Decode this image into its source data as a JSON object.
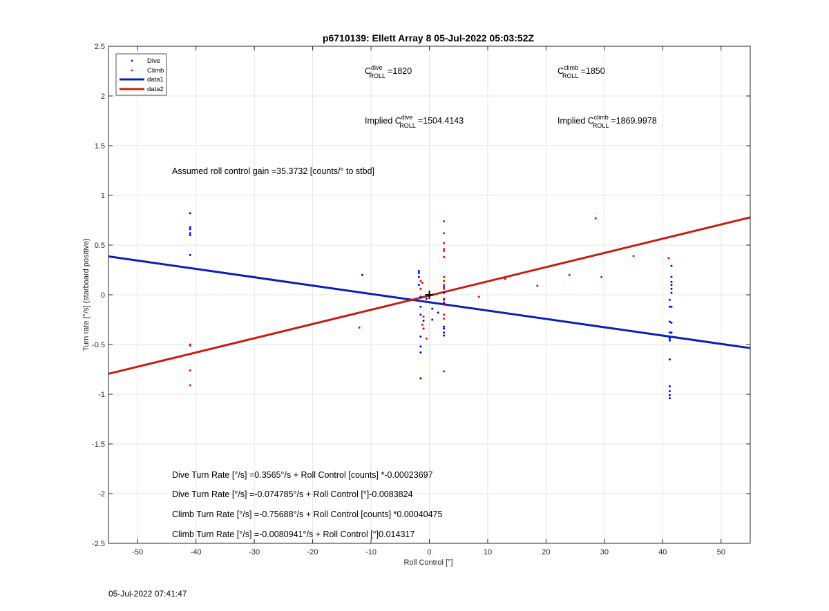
{
  "title": "p6710139: Ellett Array 8 05-Jul-2022 05:03:52Z",
  "timestamp": "05-Jul-2022 07:41:47",
  "annotations": {
    "c_dive_label": "C",
    "c_dive_sup": "dive",
    "c_dive_sub": "ROLL",
    "c_dive_value": "=1820",
    "c_climb_label": "C",
    "c_climb_sup": "climb",
    "c_climb_sub": "ROLL",
    "c_climb_value": "=1850",
    "implied_dive_prefix": "Implied C",
    "implied_dive_sup": "dive",
    "implied_dive_sub": "ROLL",
    "implied_dive_value": "=1504.4143",
    "implied_climb_prefix": "Implied C",
    "implied_climb_sup": "climb",
    "implied_climb_sub": "ROLL",
    "implied_climb_value": "=1869.9978",
    "gain": "Assumed roll control gain =35.3732 [counts/° to stbd]",
    "eq1": "Dive Turn Rate [°/s] =0.3565°/s + Roll Control [counts] *-0.00023697",
    "eq2": "Dive Turn Rate [°/s] =-0.074785°/s + Roll Control [°]-0.0083824",
    "eq3": "Climb Turn Rate [°/s] =-0.75688°/s + Roll Control [counts] *0.00040475",
    "eq4": "Climb Turn Rate [°/s] =-0.0080941°/s + Roll Control [°]0.014317"
  },
  "chart_data": {
    "type": "scatter",
    "title": "p6710139: Ellett Array 8 05-Jul-2022 05:03:52Z",
    "xlabel": "Roll Control [°]",
    "ylabel": "Turn rate [°/s] (starboard positive)",
    "xlim": [
      -55,
      55
    ],
    "ylim": [
      -2.5,
      2.5
    ],
    "xticks": [
      -50,
      -40,
      -30,
      -20,
      -10,
      0,
      10,
      20,
      30,
      40,
      50
    ],
    "yticks": [
      -2.5,
      -2,
      -1.5,
      -1,
      -0.5,
      0,
      0.5,
      1,
      1.5,
      2,
      2.5
    ],
    "grid": true,
    "legend_position": "top-left",
    "legend": [
      "Dive",
      "Climb",
      "data1",
      "data2"
    ],
    "colors": {
      "dive": "#0000ff",
      "climb": "#ff0000",
      "data1": "#0a1fb8",
      "data2": "#c81b12"
    },
    "series": [
      {
        "name": "Dive",
        "kind": "points",
        "x": [
          -41,
          -41,
          -41,
          -41,
          -41,
          -41,
          -11.5,
          -1.8,
          -1.8,
          -1.8,
          -1.8,
          -1.5,
          -1.5,
          -1.5,
          -1.5,
          -1.5,
          -1.5,
          -1.5,
          -1,
          -1,
          -0.5,
          0.5,
          0.5,
          1.5,
          2.5,
          2.5,
          2.5,
          2.5,
          2.5,
          2.5,
          2.5,
          2.5,
          41.2,
          41.2,
          41.2,
          41.2,
          41.2,
          41.2,
          41.2,
          41.2,
          41.2,
          41.2,
          41.2,
          41.5,
          41.5,
          41.5,
          41.5,
          41.5,
          41.5,
          41.5,
          41.5,
          41.5
        ],
        "y": [
          0.82,
          0.68,
          0.66,
          0.62,
          0.6,
          0.4,
          0.2,
          0.24,
          0.22,
          0.18,
          0.1,
          -0.02,
          -0.12,
          -0.2,
          -0.42,
          -0.52,
          -0.58,
          -0.84,
          -0.26,
          -0.34,
          -0.04,
          -0.14,
          -0.25,
          -0.18,
          0.08,
          0.02,
          -0.05,
          -0.08,
          -0.32,
          -0.34,
          -0.38,
          -0.41,
          -0.05,
          -0.12,
          -0.27,
          -0.38,
          -0.44,
          -0.46,
          -0.65,
          -0.92,
          -0.97,
          -1.01,
          -1.04,
          0.29,
          0.18,
          0.13,
          0.1,
          0.06,
          0.02,
          -0.12,
          -0.28,
          -0.38
        ]
      },
      {
        "name": "Climb",
        "kind": "points",
        "x": [
          -41,
          -41,
          -41,
          -41,
          -12,
          -1.5,
          -1.5,
          -1.2,
          -1.2,
          -1,
          -1,
          -0.5,
          0,
          2.5,
          2.5,
          2.5,
          2.5,
          2.5,
          2.5,
          2.5,
          2.5,
          2.5,
          2.5,
          2.5,
          2.5,
          2.5,
          2.5,
          2.5,
          8.5,
          13,
          18.5,
          24,
          28.5,
          29.5,
          35,
          41
        ],
        "y": [
          -0.5,
          -0.51,
          -0.76,
          -0.91,
          -0.33,
          0.14,
          0.06,
          0.12,
          -0.3,
          -0.22,
          -0.34,
          -0.44,
          -0.02,
          0.74,
          0.62,
          0.52,
          0.46,
          0.44,
          0.38,
          0.18,
          0.14,
          0.1,
          0.06,
          -0.04,
          -0.1,
          -0.2,
          -0.24,
          -0.77,
          -0.02,
          0.16,
          0.09,
          0.2,
          0.77,
          0.18,
          0.39,
          0.37
        ]
      },
      {
        "name": "data1",
        "kind": "line",
        "x": [
          -55,
          55
        ],
        "y": [
          0.386,
          -0.536
        ]
      },
      {
        "name": "data2",
        "kind": "line",
        "x": [
          -55,
          55
        ],
        "y": [
          -0.795,
          0.779
        ]
      },
      {
        "name": "",
        "kind": "marker",
        "x": [
          0
        ],
        "y": [
          0
        ]
      }
    ]
  }
}
